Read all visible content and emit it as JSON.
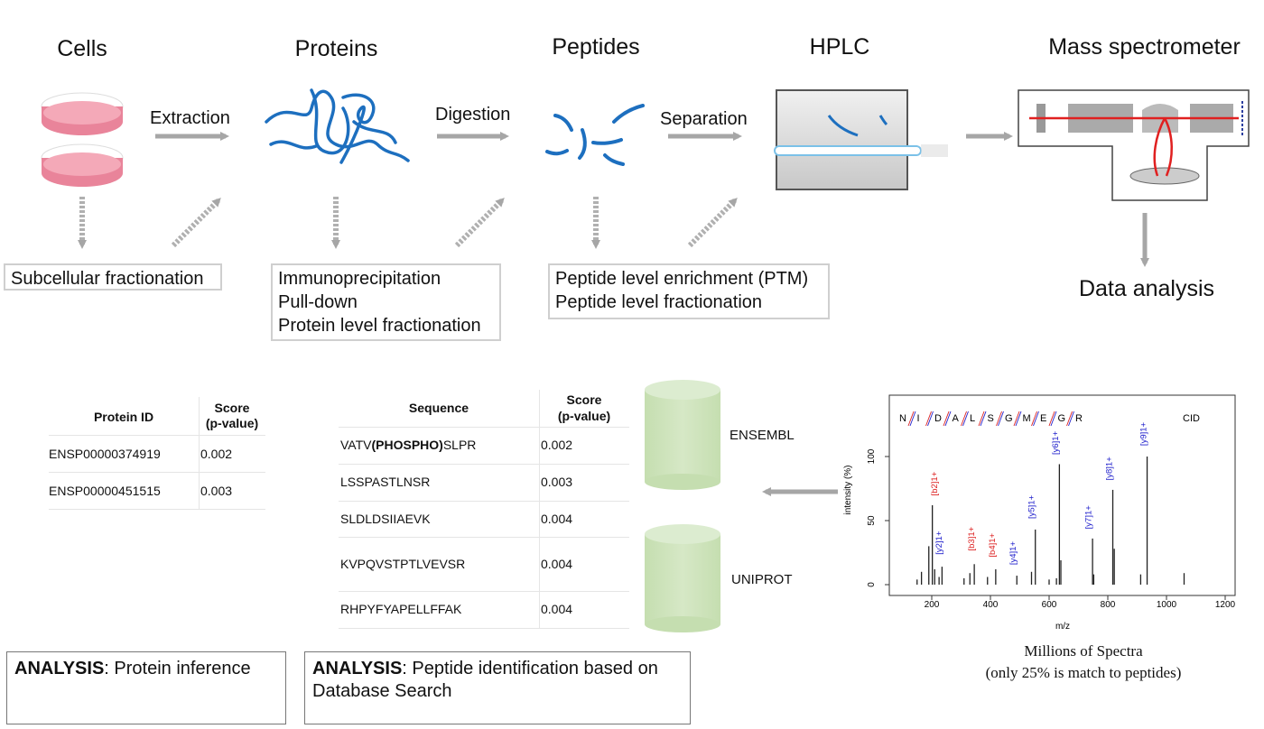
{
  "stages": {
    "cells": "Cells",
    "proteins": "Proteins",
    "peptides": "Peptides",
    "hplc": "HPLC",
    "mass_spec": "Mass spectrometer"
  },
  "steps": {
    "extraction": "Extraction",
    "digestion": "Digestion",
    "separation": "Separation"
  },
  "data_analysis": "Data analysis",
  "side_boxes": {
    "cells": [
      "Subcellular fractionation"
    ],
    "proteins": [
      "Immunoprecipitation",
      "Pull-down",
      "Protein level fractionation"
    ],
    "peptides": [
      "Peptide level enrichment (PTM)",
      "Peptide level fractionation"
    ]
  },
  "protein_table": {
    "headers": [
      "Protein ID",
      "Score",
      "(p-value)"
    ],
    "rows": [
      {
        "id": "ENSP00000374919",
        "score": "0.002"
      },
      {
        "id": "ENSP00000451515",
        "score": "0.003"
      }
    ]
  },
  "peptide_table": {
    "headers": [
      "Sequence",
      "Score",
      "(p-value)"
    ],
    "rows": [
      {
        "pre": "VATV",
        "mod": "(PHOSPHO)",
        "post": "SLPR",
        "score": "0.002"
      },
      {
        "pre": "LSSPASTLNSR",
        "mod": "",
        "post": "",
        "score": "0.003"
      },
      {
        "pre": "SLDLDSIIAEVK",
        "mod": "",
        "post": "",
        "score": "0.004"
      },
      {
        "pre": "KVPQVSTPTLVEVSR",
        "mod": "",
        "post": "",
        "score": "0.004"
      },
      {
        "pre": "RHPYFYAPELLFFAK",
        "mod": "",
        "post": "",
        "score": "0.004"
      }
    ]
  },
  "databases": [
    "ENSEMBL",
    "UNIPROT"
  ],
  "analysis_boxes": [
    {
      "bold": "ANALYSIS",
      "text": ": Protein inference"
    },
    {
      "bold": "ANALYSIS",
      "text": ": Peptide identification based on Database Search"
    }
  ],
  "spectrum": {
    "sequence_letters": [
      "N",
      "I",
      "D",
      "A",
      "L",
      "S",
      "G",
      "M",
      "E",
      "G",
      "R"
    ],
    "method": "CID",
    "ylabel": "intensity (%)",
    "xlabel": "m/z",
    "x_ticks": [
      "200",
      "400",
      "600",
      "800",
      "1000",
      "1200"
    ],
    "y_ticks": [
      "0",
      "50",
      "100"
    ],
    "xlim": [
      60,
      1240
    ],
    "ylim": [
      0,
      110
    ],
    "peaks": [
      {
        "mz": 150,
        "i": 4
      },
      {
        "mz": 165,
        "i": 10
      },
      {
        "mz": 190,
        "i": 30
      },
      {
        "mz": 202,
        "i": 62
      },
      {
        "mz": 210,
        "i": 12
      },
      {
        "mz": 225,
        "i": 6
      },
      {
        "mz": 235,
        "i": 14
      },
      {
        "mz": 310,
        "i": 5
      },
      {
        "mz": 330,
        "i": 9
      },
      {
        "mz": 345,
        "i": 16
      },
      {
        "mz": 390,
        "i": 6
      },
      {
        "mz": 418,
        "i": 12
      },
      {
        "mz": 490,
        "i": 7
      },
      {
        "mz": 540,
        "i": 10
      },
      {
        "mz": 553,
        "i": 43
      },
      {
        "mz": 600,
        "i": 4
      },
      {
        "mz": 625,
        "i": 5
      },
      {
        "mz": 635,
        "i": 94
      },
      {
        "mz": 640,
        "i": 19
      },
      {
        "mz": 748,
        "i": 36
      },
      {
        "mz": 752,
        "i": 8
      },
      {
        "mz": 817,
        "i": 74
      },
      {
        "mz": 822,
        "i": 28
      },
      {
        "mz": 912,
        "i": 8
      },
      {
        "mz": 934,
        "i": 100
      },
      {
        "mz": 1060,
        "i": 9
      }
    ],
    "ion_labels": [
      {
        "text": "[b2]1+",
        "mz": 225,
        "i": 68,
        "color": "#d22"
      },
      {
        "text": "[y2]1+",
        "mz": 240,
        "i": 22,
        "color": "#22c"
      },
      {
        "text": "[b3]1+",
        "mz": 350,
        "i": 25,
        "color": "#d22"
      },
      {
        "text": "[b4]1+",
        "mz": 422,
        "i": 20,
        "color": "#d22"
      },
      {
        "text": "[y4]1+",
        "mz": 492,
        "i": 14,
        "color": "#22c"
      },
      {
        "text": "[y5]1+",
        "mz": 555,
        "i": 50,
        "color": "#22c"
      },
      {
        "text": "[y6]1+",
        "mz": 637,
        "i": 100,
        "color": "#22c"
      },
      {
        "text": "[y7]1+",
        "mz": 750,
        "i": 42,
        "color": "#22c"
      },
      {
        "text": "[y8]1+",
        "mz": 820,
        "i": 80,
        "color": "#22c"
      },
      {
        "text": "[y9]1+",
        "mz": 937,
        "i": 107,
        "color": "#22c"
      }
    ]
  },
  "caption": [
    "Millions of Spectra",
    "(only 25% is match to peptides)"
  ],
  "colors": {
    "arrow": "#a6a6a6",
    "dish": "#ee97a8",
    "protein": "#1d6fbf",
    "db": "#c5deb0",
    "laser": "#e02020"
  }
}
